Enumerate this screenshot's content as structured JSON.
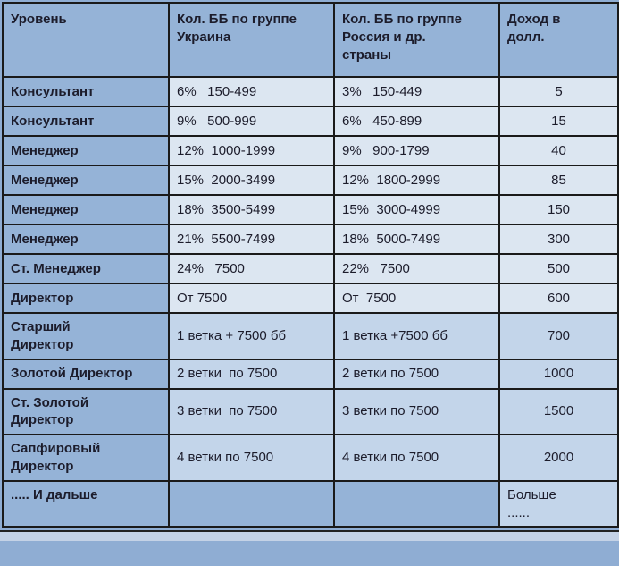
{
  "colors": {
    "page_bg": "#8fadd3",
    "header_blue": "#95b3d7",
    "row_light": "#dce6f1",
    "row_mid": "#c3d5ea",
    "border": "#1a1a1a",
    "text": "#1c1c2b"
  },
  "table": {
    "columns": [
      {
        "label": "Уровень"
      },
      {
        "label": "Кол. ББ по группе\nУкраина"
      },
      {
        "label": "Кол. ББ по группе\nРоссия и др.\nстраны"
      },
      {
        "label": "Доход в\nдолл."
      }
    ],
    "rows": [
      {
        "level": "Консультант",
        "ua": "6%   150-499",
        "ru": "3%   150-449",
        "usd": "5"
      },
      {
        "level": "Консультант",
        "ua": "9%   500-999",
        "ru": "6%   450-899",
        "usd": "15"
      },
      {
        "level": "Менеджер",
        "ua": "12%  1000-1999",
        "ru": "9%   900-1799",
        "usd": "40"
      },
      {
        "level": "Менеджер",
        "ua": "15%  2000-3499",
        "ru": "12%  1800-2999",
        "usd": "85"
      },
      {
        "level": "Менеджер",
        "ua": "18%  3500-5499",
        "ru": "15%  3000-4999",
        "usd": "150"
      },
      {
        "level": "Менеджер",
        "ua": "21%  5500-7499",
        "ru": "18%  5000-7499",
        "usd": "300"
      },
      {
        "level": "Ст. Менеджер",
        "ua": "24%   7500",
        "ru": "22%   7500",
        "usd": "500"
      },
      {
        "level": "Директор",
        "ua": "От 7500",
        "ru": "От  7500",
        "usd": "600"
      },
      {
        "level": "Старший\nДиректор",
        "ua": "1 ветка + 7500 бб",
        "ru": "1 ветка +7500 бб",
        "usd": "700"
      },
      {
        "level": "Золотой Директор",
        "ua": "2 ветки  по 7500",
        "ru": "2 ветки по 7500",
        "usd": "1000"
      },
      {
        "level": "Ст. Золотой\nДиректор",
        "ua": "3 ветки  по 7500",
        "ru": "3 ветки по 7500",
        "usd": "1500"
      },
      {
        "level": "Сапфировый\nДиректор",
        "ua": "4 ветки по 7500",
        "ru": "4 ветки по 7500",
        "usd": "2000"
      },
      {
        "level": "..... И дальше",
        "ua": "",
        "ru": "",
        "usd": "Больше\n......"
      }
    ]
  }
}
